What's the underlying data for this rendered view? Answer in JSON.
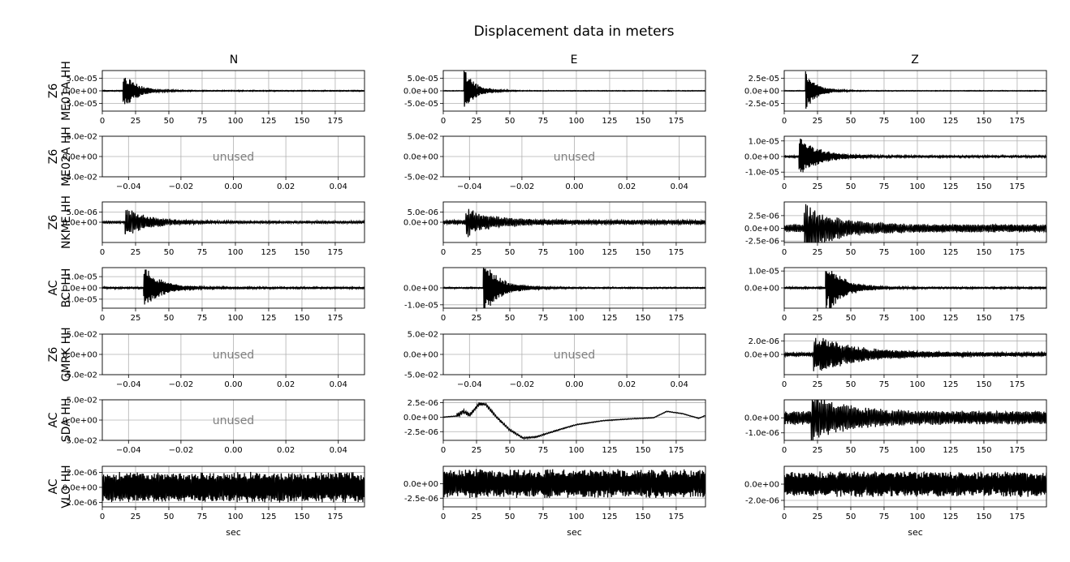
{
  "title": "Displacement data in meters",
  "columns": [
    "N",
    "E",
    "Z"
  ],
  "rows": [
    {
      "network": "Z6",
      "station": "ME01A HH"
    },
    {
      "network": "Z6",
      "station": "ME02A HH"
    },
    {
      "network": "Z6",
      "station": "NKME HH"
    },
    {
      "network": "AC",
      "station": "BCI HH"
    },
    {
      "network": "Z6",
      "station": "GMRK HH"
    },
    {
      "network": "AC",
      "station": "SDA HH"
    },
    {
      "network": "AC",
      "station": "VLO HH"
    }
  ],
  "xlabel": "sec",
  "unused_label": "unused",
  "colors": {
    "trace": "#000000",
    "grid": "#b0b0b0",
    "unused_text": "#808080"
  },
  "chart_data": [
    {
      "type": "line",
      "row": 0,
      "col": 0,
      "channel": "N",
      "ylim": [
        -8e-05,
        8e-05
      ],
      "xlim": [
        0,
        197
      ],
      "xticks": [
        0,
        25,
        50,
        75,
        100,
        125,
        150,
        175
      ],
      "yticks": [
        -5e-05,
        0,
        5e-05
      ],
      "ytick_labels": [
        "-5.0e-05",
        "0.0e+00",
        "5.0e-05"
      ],
      "grid": true,
      "unused": false,
      "trace": {
        "t0": 15.5,
        "peak": 7.8e-05,
        "decay": 9,
        "tail": 1.5e-06,
        "freq": 1.3,
        "lf": 0
      }
    },
    {
      "type": "line",
      "row": 0,
      "col": 1,
      "channel": "E",
      "ylim": [
        -8e-05,
        8e-05
      ],
      "xlim": [
        0,
        197
      ],
      "xticks": [
        0,
        25,
        50,
        75,
        100,
        125,
        150,
        175
      ],
      "yticks": [
        -5e-05,
        0,
        5e-05
      ],
      "ytick_labels": [
        "-5.0e-05",
        "0.0e+00",
        "5.0e-05"
      ],
      "grid": true,
      "unused": false,
      "trace": {
        "t0": 15.5,
        "peak": 8e-05,
        "decay": 8,
        "tail": 1e-06,
        "freq": 1.3,
        "lf": 0
      }
    },
    {
      "type": "line",
      "row": 0,
      "col": 2,
      "channel": "Z",
      "ylim": [
        -4e-05,
        4e-05
      ],
      "xlim": [
        0,
        197
      ],
      "xticks": [
        0,
        25,
        50,
        75,
        100,
        125,
        150,
        175
      ],
      "yticks": [
        -2.5e-05,
        0,
        2.5e-05
      ],
      "ytick_labels": [
        "-2.5e-05",
        "0.0e+00",
        "2.5e-05"
      ],
      "grid": true,
      "unused": false,
      "trace": {
        "t0": 16,
        "peak": 3.5e-05,
        "decay": 8,
        "tail": 5e-07,
        "freq": 1.4,
        "lf": 0
      }
    },
    {
      "type": "line",
      "row": 1,
      "col": 0,
      "channel": "N",
      "ylim": [
        -0.05,
        0.05
      ],
      "xlim": [
        -0.05,
        0.05
      ],
      "xticks": [
        -0.04,
        -0.02,
        0,
        0.02,
        0.04
      ],
      "xtick_labels": [
        "−0.04",
        "−0.02",
        "0.00",
        "0.02",
        "0.04"
      ],
      "yticks": [
        -0.05,
        0,
        0.05
      ],
      "ytick_labels": [
        "-5.0e-02",
        "0.0e+00",
        "5.0e-02"
      ],
      "grid": true,
      "unused": true
    },
    {
      "type": "line",
      "row": 1,
      "col": 1,
      "channel": "E",
      "ylim": [
        -0.05,
        0.05
      ],
      "xlim": [
        -0.05,
        0.05
      ],
      "xticks": [
        -0.04,
        -0.02,
        0,
        0.02,
        0.04
      ],
      "xtick_labels": [
        "−0.04",
        "−0.02",
        "0.00",
        "0.02",
        "0.04"
      ],
      "yticks": [
        -0.05,
        0,
        0.05
      ],
      "ytick_labels": [
        "-5.0e-02",
        "0.0e+00",
        "5.0e-02"
      ],
      "grid": true,
      "unused": true
    },
    {
      "type": "line",
      "row": 1,
      "col": 2,
      "channel": "Z",
      "ylim": [
        -1.3e-05,
        1.3e-05
      ],
      "xlim": [
        0,
        197
      ],
      "xticks": [
        0,
        25,
        50,
        75,
        100,
        125,
        150,
        175
      ],
      "yticks": [
        -1e-05,
        0,
        1e-05
      ],
      "ytick_labels": [
        "-1.0e-05",
        "0.0e+00",
        "1.0e-05"
      ],
      "grid": true,
      "unused": false,
      "trace": {
        "t0": 11,
        "peak": 1.2e-05,
        "decay": 14,
        "tail": 5e-07,
        "freq": 1.2,
        "lf": 0
      }
    },
    {
      "type": "line",
      "row": 2,
      "col": 0,
      "channel": "N",
      "ylim": [
        -1e-05,
        1e-05
      ],
      "xlim": [
        0,
        197
      ],
      "xticks": [
        0,
        25,
        50,
        75,
        100,
        125,
        150,
        175
      ],
      "yticks": [
        0,
        5e-06
      ],
      "ytick_labels": [
        "0.0e+00",
        "5.0e-06"
      ],
      "grid": true,
      "unused": false,
      "trace": {
        "t0": 17,
        "peak": 6e-06,
        "decay": 18,
        "tail": 5e-07,
        "freq": 0.8,
        "lf": 0
      }
    },
    {
      "type": "line",
      "row": 2,
      "col": 1,
      "channel": "E",
      "ylim": [
        -1e-05,
        1e-05
      ],
      "xlim": [
        0,
        197
      ],
      "xticks": [
        0,
        25,
        50,
        75,
        100,
        125,
        150,
        175
      ],
      "yticks": [
        0,
        5e-06
      ],
      "ytick_labels": [
        "0.0e+00",
        "5.0e-06"
      ],
      "grid": true,
      "unused": false,
      "trace": {
        "t0": 17,
        "peak": 6e-06,
        "decay": 18,
        "tail": 1e-06,
        "freq": 0.8,
        "lf": 0
      }
    },
    {
      "type": "line",
      "row": 2,
      "col": 2,
      "channel": "Z",
      "ylim": [
        -2.8e-06,
        5.2e-06
      ],
      "xlim": [
        0,
        197
      ],
      "xticks": [
        0,
        25,
        50,
        75,
        100,
        125,
        150,
        175
      ],
      "yticks": [
        -2.5e-06,
        0,
        2.5e-06
      ],
      "ytick_labels": [
        "-2.5e-06",
        "0.0e+00",
        "2.5e-06"
      ],
      "grid": true,
      "unused": false,
      "trace": {
        "t0": 15,
        "peak": 3.8e-06,
        "decay": 22,
        "tail": 7e-07,
        "freq": 0.8,
        "lf": 0
      }
    },
    {
      "type": "line",
      "row": 3,
      "col": 0,
      "channel": "N",
      "ylim": [
        -1.8e-05,
        1.8e-05
      ],
      "xlim": [
        0,
        197
      ],
      "xticks": [
        0,
        25,
        50,
        75,
        100,
        125,
        150,
        175
      ],
      "yticks": [
        -1e-05,
        0,
        1e-05
      ],
      "ytick_labels": [
        "-1.0e-05",
        "0.0e+00",
        "1.0e-05"
      ],
      "grid": true,
      "unused": false,
      "trace": {
        "t0": 31,
        "peak": 1.8e-05,
        "decay": 12,
        "tail": 6e-07,
        "freq": 1.2,
        "lf": 0
      }
    },
    {
      "type": "line",
      "row": 3,
      "col": 1,
      "channel": "E",
      "ylim": [
        -1.2e-05,
        1.2e-05
      ],
      "xlim": [
        0,
        197
      ],
      "xticks": [
        0,
        25,
        50,
        75,
        100,
        125,
        150,
        175
      ],
      "yticks": [
        -1e-05,
        0
      ],
      "ytick_labels": [
        "-1.0e-05",
        "0.0e+00"
      ],
      "grid": true,
      "unused": false,
      "trace": {
        "t0": 30,
        "peak": 1.5e-05,
        "decay": 12,
        "tail": 3e-07,
        "freq": 1.2,
        "lf": 0
      }
    },
    {
      "type": "line",
      "row": 3,
      "col": 2,
      "channel": "Z",
      "ylim": [
        -1.2e-05,
        1.2e-05
      ],
      "xlim": [
        0,
        197
      ],
      "xticks": [
        0,
        25,
        50,
        75,
        100,
        125,
        150,
        175
      ],
      "yticks": [
        0,
        1e-05
      ],
      "ytick_labels": [
        "0.0e+00",
        "1.0e-05"
      ],
      "grid": true,
      "unused": false,
      "trace": {
        "t0": 31,
        "peak": 1.5e-05,
        "decay": 12,
        "tail": 4e-07,
        "freq": 1.2,
        "lf": 0
      }
    },
    {
      "type": "line",
      "row": 4,
      "col": 0,
      "channel": "N",
      "ylim": [
        -0.05,
        0.05
      ],
      "xlim": [
        -0.05,
        0.05
      ],
      "xticks": [
        -0.04,
        -0.02,
        0,
        0.02,
        0.04
      ],
      "xtick_labels": [
        "−0.04",
        "−0.02",
        "0.00",
        "0.02",
        "0.04"
      ],
      "yticks": [
        -0.05,
        0,
        0.05
      ],
      "ytick_labels": [
        "-5.0e-02",
        "0.0e+00",
        "5.0e-02"
      ],
      "grid": true,
      "unused": true
    },
    {
      "type": "line",
      "row": 4,
      "col": 1,
      "channel": "E",
      "ylim": [
        -0.05,
        0.05
      ],
      "xlim": [
        -0.05,
        0.05
      ],
      "xticks": [
        -0.04,
        -0.02,
        0,
        0.02,
        0.04
      ],
      "xtick_labels": [
        "−0.04",
        "−0.02",
        "0.00",
        "0.02",
        "0.04"
      ],
      "yticks": [
        -0.05,
        0,
        0.05
      ],
      "ytick_labels": [
        "-5.0e-02",
        "0.0e+00",
        "5.0e-02"
      ],
      "grid": true,
      "unused": true
    },
    {
      "type": "line",
      "row": 4,
      "col": 2,
      "channel": "Z",
      "ylim": [
        -3e-06,
        3e-06
      ],
      "xlim": [
        0,
        197
      ],
      "xticks": [
        0,
        25,
        50,
        75,
        100,
        125,
        150,
        175
      ],
      "yticks": [
        0,
        2e-06
      ],
      "ytick_labels": [
        "0.0e+00",
        "2.0e-06"
      ],
      "grid": true,
      "unused": false,
      "trace": {
        "t0": 22,
        "peak": 2.5e-06,
        "decay": 30,
        "tail": 2.5e-07,
        "freq": 0.9,
        "lf": 0
      }
    },
    {
      "type": "line",
      "row": 5,
      "col": 0,
      "channel": "N",
      "ylim": [
        -0.05,
        0.05
      ],
      "xlim": [
        -0.05,
        0.05
      ],
      "xticks": [
        -0.04,
        -0.02,
        0,
        0.02,
        0.04
      ],
      "xtick_labels": [
        "−0.04",
        "−0.02",
        "0.00",
        "0.02",
        "0.04"
      ],
      "yticks": [
        -0.05,
        0,
        0.05
      ],
      "ytick_labels": [
        "-5.0e-02",
        "0.0e+00",
        "5.0e-02"
      ],
      "grid": true,
      "unused": true
    },
    {
      "type": "line",
      "row": 5,
      "col": 1,
      "channel": "E",
      "ylim": [
        -4e-06,
        3e-06
      ],
      "xlim": [
        0,
        197
      ],
      "xticks": [
        0,
        25,
        50,
        75,
        100,
        125,
        150,
        175
      ],
      "yticks": [
        -2.5e-06,
        0,
        2.5e-06
      ],
      "ytick_labels": [
        "-2.5e-06",
        "0.0e+00",
        "2.5e-06"
      ],
      "grid": true,
      "unused": false,
      "trace": {
        "t0": 10,
        "peak": 3e-07,
        "decay": 40,
        "tail": 5e-08,
        "freq": 0.7,
        "lf": 1,
        "lf_points": [
          [
            0,
            0
          ],
          [
            10,
            2e-07
          ],
          [
            15,
            1e-06
          ],
          [
            20,
            4e-07
          ],
          [
            27,
            2.3e-06
          ],
          [
            32,
            2.2e-06
          ],
          [
            40,
            0
          ],
          [
            50,
            -2.2e-06
          ],
          [
            60,
            -3.6e-06
          ],
          [
            70,
            -3.4e-06
          ],
          [
            85,
            -2.3e-06
          ],
          [
            100,
            -1.3e-06
          ],
          [
            120,
            -6e-07
          ],
          [
            140,
            -3e-07
          ],
          [
            158,
            -1e-07
          ],
          [
            168,
            1e-06
          ],
          [
            180,
            6e-07
          ],
          [
            192,
            -2e-07
          ],
          [
            197,
            3e-07
          ]
        ]
      }
    },
    {
      "type": "line",
      "row": 5,
      "col": 2,
      "channel": "Z",
      "ylim": [
        -1.5e-06,
        1.2e-06
      ],
      "xlim": [
        0,
        197
      ],
      "xticks": [
        0,
        25,
        50,
        75,
        100,
        125,
        150,
        175
      ],
      "yticks": [
        -1e-06,
        0
      ],
      "ytick_labels": [
        "-1.0e-06",
        "0.0e+00"
      ],
      "grid": true,
      "unused": false,
      "trace": {
        "t0": 20,
        "peak": 1.2e-06,
        "decay": 25,
        "tail": 4e-07,
        "freq": 0.8,
        "lf": 0
      }
    },
    {
      "type": "line",
      "row": 6,
      "col": 0,
      "channel": "N",
      "ylim": [
        -2.6e-06,
        2.8e-06
      ],
      "xlim": [
        0,
        197
      ],
      "xticks": [
        0,
        25,
        50,
        75,
        100,
        125,
        150,
        175
      ],
      "yticks": [
        -2e-06,
        0,
        2e-06
      ],
      "ytick_labels": [
        "-2.0e-06",
        "0.0e+00",
        "2.0e-06"
      ],
      "grid": true,
      "unused": false,
      "trace": {
        "t0": 0,
        "peak": 0,
        "decay": 1,
        "tail": 1.8e-06,
        "freq": 1.0,
        "lf": 0
      }
    },
    {
      "type": "line",
      "row": 6,
      "col": 1,
      "channel": "E",
      "ylim": [
        -4e-06,
        3e-06
      ],
      "xlim": [
        0,
        197
      ],
      "xticks": [
        0,
        25,
        50,
        75,
        100,
        125,
        150,
        175
      ],
      "yticks": [
        -2.5e-06,
        0
      ],
      "ytick_labels": [
        "-2.5e-06",
        "0.0e+00"
      ],
      "grid": true,
      "unused": false,
      "trace": {
        "t0": 0,
        "peak": 0,
        "decay": 1,
        "tail": 2.2e-06,
        "freq": 1.0,
        "lf": 0
      }
    },
    {
      "type": "line",
      "row": 6,
      "col": 2,
      "channel": "Z",
      "ylim": [
        -2.8e-06,
        2.2e-06
      ],
      "xlim": [
        0,
        197
      ],
      "xticks": [
        0,
        25,
        50,
        75,
        100,
        125,
        150,
        175
      ],
      "yticks": [
        -2e-06,
        0
      ],
      "ytick_labels": [
        "-2.0e-06",
        "0.0e+00"
      ],
      "grid": true,
      "unused": false,
      "trace": {
        "t0": 0,
        "peak": 0,
        "decay": 1,
        "tail": 1.4e-06,
        "freq": 1.0,
        "lf": 0
      }
    }
  ]
}
